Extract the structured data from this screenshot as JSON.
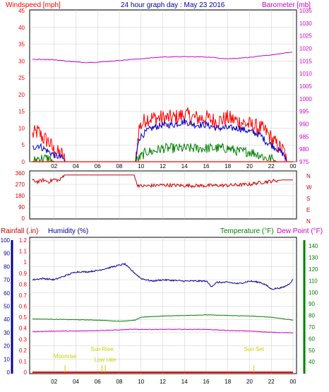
{
  "title": "24 hour graph day : May 23 2016",
  "colors": {
    "wind": "#ff0000",
    "gust": "#0000cc",
    "green": "#008000",
    "baro": "#cc00cc",
    "dir": "#cc0000",
    "rain": "#ff0000",
    "humidity": "#000099",
    "temp": "#008000",
    "dew": "#cc00cc",
    "sun": "#cccc00",
    "grid": "#cccccc"
  },
  "chart_data": [
    {
      "type": "line",
      "name": "wind_baro",
      "left_axis_label": "Windspeed [mph]",
      "right_axis_label": "Barometer [mb]",
      "x_ticks": [
        "02",
        "04",
        "06",
        "08",
        "10",
        "12",
        "14",
        "16",
        "18",
        "20",
        "22",
        "00"
      ],
      "left_ticks": [
        "0",
        "5",
        "10",
        "15",
        "20",
        "25",
        "30",
        "35",
        "40",
        "45"
      ],
      "right_ticks": [
        "975",
        "980",
        "985",
        "990",
        "995",
        "1000",
        "1005",
        "1010",
        "1015",
        "1020",
        "1025",
        "1030",
        "1035"
      ],
      "ylim_left": [
        0,
        45
      ],
      "ylim_right": [
        975,
        1035
      ],
      "barometer": {
        "x": [
          0,
          2,
          4,
          5,
          6,
          8,
          10,
          12,
          14,
          16,
          18,
          20,
          22,
          23.9
        ],
        "y": [
          1015.7,
          1015.5,
          1014.6,
          1014.4,
          1014.5,
          1015.2,
          1015.9,
          1016.6,
          1016.7,
          1016.6,
          1015.9,
          1016.4,
          1017.4,
          1018.5
        ]
      },
      "wind_envelope": {
        "x": [
          0,
          0.5,
          1,
          1.5,
          2,
          2.8,
          3.0,
          9.5,
          9.8,
          10.5,
          11,
          12,
          13,
          14,
          15,
          16,
          17,
          18,
          19,
          20,
          21,
          21.5,
          22,
          22.5,
          23.2,
          23.4
        ],
        "speed": [
          4,
          5,
          4,
          3,
          2,
          1,
          0,
          0,
          7,
          9,
          10,
          11,
          11,
          12,
          11,
          11,
          10,
          10,
          10,
          9,
          8,
          6,
          5,
          4,
          2,
          0
        ],
        "gust": [
          8,
          9,
          7,
          6,
          3,
          2,
          0,
          0,
          10,
          13,
          13,
          13,
          13,
          14,
          13,
          13,
          12,
          13,
          12,
          11,
          10,
          9,
          7,
          5,
          3,
          0
        ],
        "low": [
          0,
          1,
          1,
          1,
          0,
          0,
          0,
          0,
          1,
          3,
          3,
          4,
          4,
          4,
          4,
          4,
          4,
          4,
          3,
          3,
          2,
          1,
          1,
          0,
          0,
          0
        ]
      }
    },
    {
      "type": "line",
      "name": "wind_direction",
      "left_ticks": [
        "0",
        "90",
        "180",
        "270",
        "360"
      ],
      "compass": [
        "N",
        "W",
        "S",
        "E",
        "N"
      ],
      "x_ticks": [
        "02",
        "04",
        "06",
        "08",
        "10",
        "12",
        "14",
        "16",
        "18",
        "20",
        "22",
        "00"
      ],
      "ylim": [
        0,
        360
      ],
      "direction": {
        "x": [
          0,
          0.5,
          1,
          1.5,
          2,
          2.5,
          2.9,
          3.1,
          5,
          7,
          9,
          9.4,
          9.6,
          10,
          12,
          14,
          16,
          18,
          20,
          21,
          22,
          23,
          24
        ],
        "y": [
          300,
          290,
          305,
          290,
          310,
          300,
          345,
          345,
          345,
          345,
          345,
          345,
          270,
          255,
          265,
          260,
          260,
          262,
          270,
          285,
          295,
          305,
          305
        ]
      }
    },
    {
      "type": "line",
      "name": "rain_humidity_temp",
      "rain_label": "Rainfall (.in)",
      "humidity_label": "Humidity (%)",
      "temp_label": "Temperature (°F)",
      "dew_label": "Dew Point (°F)",
      "x_ticks": [
        "02",
        "04",
        "06",
        "08",
        "10",
        "12",
        "14",
        "16",
        "18",
        "20",
        "22",
        "00"
      ],
      "rain_ticks": [
        "0",
        "0.1",
        "0.2",
        "0.3",
        "0.4",
        "0.5",
        "0.6",
        "0.7",
        "0.8",
        "0.9",
        "1",
        "1.1",
        "1.2"
      ],
      "humidity_ticks": [
        "0",
        "10",
        "20",
        "30",
        "40",
        "50",
        "60",
        "70",
        "80",
        "90",
        "100"
      ],
      "temp_ticks": [
        "40",
        "50",
        "60",
        "70",
        "80",
        "90",
        "100",
        "110",
        "120",
        "130",
        "140"
      ],
      "humidity": {
        "x": [
          0,
          1,
          2,
          3,
          4,
          5,
          6,
          7,
          7.5,
          8,
          8.5,
          9,
          10,
          11,
          12,
          14,
          16,
          16.5,
          17,
          18,
          19,
          20,
          21,
          21.5,
          22,
          23,
          23.5,
          24
        ],
        "y": [
          70,
          71,
          70,
          73,
          76,
          76,
          77,
          79,
          80,
          81,
          82,
          78,
          71,
          69,
          70,
          69,
          69,
          65,
          68,
          68,
          67,
          69,
          68,
          66,
          63,
          64,
          66,
          70
        ]
      },
      "temperature": {
        "x": [
          0,
          3,
          6,
          8,
          9,
          9.5,
          10,
          12,
          14,
          16,
          18,
          20,
          22,
          24
        ],
        "y": [
          77,
          76.5,
          76,
          75,
          75.5,
          76,
          78.5,
          79.5,
          80,
          80.5,
          80,
          79.5,
          78.5,
          76
        ]
      },
      "dewpoint": {
        "x": [
          0,
          2,
          4,
          6,
          8,
          9,
          10,
          12,
          14,
          16,
          18,
          20,
          22,
          24
        ],
        "y": [
          66,
          66.5,
          66.5,
          67,
          67.5,
          68,
          68,
          68,
          68,
          68,
          67,
          66.5,
          65.5,
          65
        ]
      },
      "rain": {
        "x": [
          0,
          24
        ],
        "y": [
          0,
          0
        ]
      },
      "sun_markers": [
        {
          "label": "Moonrise",
          "hour": 3.0
        },
        {
          "label": "Sun Rise",
          "hour": 6.4
        },
        {
          "label": "Low rate",
          "hour": 6.7
        },
        {
          "label": "Sun Set",
          "hour": 20.4
        }
      ]
    }
  ]
}
